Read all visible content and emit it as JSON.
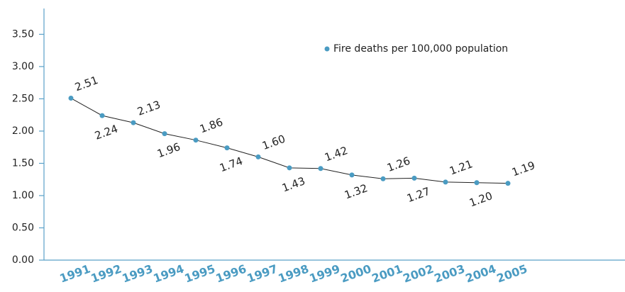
{
  "chart_data": {
    "type": "line",
    "categories": [
      "1991",
      "1992",
      "1993",
      "1994",
      "1995",
      "1996",
      "1997",
      "1998",
      "1999",
      "2000",
      "2001",
      "2002",
      "2003",
      "2004",
      "2005"
    ],
    "series": [
      {
        "name": "Fire deaths per 100,000 population",
        "color": "#4a9bc2",
        "values": [
          2.51,
          2.24,
          2.13,
          1.96,
          1.86,
          1.74,
          1.6,
          1.43,
          1.42,
          1.32,
          1.26,
          1.27,
          1.21,
          1.2,
          1.19
        ],
        "value_labels": [
          "2.51",
          "2.24",
          "2.13",
          "1.96",
          "1.86",
          "1.74",
          "1.60",
          "1.43",
          "1.42",
          "1.32",
          "1.26",
          "1.27",
          "1.21",
          "1.20",
          "1.19"
        ]
      }
    ],
    "ylim": [
      0,
      3.9
    ],
    "yticks": [
      {
        "value": 0,
        "label": "0.00"
      },
      {
        "value": 0.5,
        "label": "0.50"
      },
      {
        "value": 1,
        "label": "1.00"
      },
      {
        "value": 1.5,
        "label": "1.50"
      },
      {
        "value": 2,
        "label": "2.00"
      },
      {
        "value": 2.5,
        "label": "2.50"
      },
      {
        "value": 3,
        "label": "3.00"
      },
      {
        "value": 3.5,
        "label": "3.50"
      }
    ],
    "legend": "top-right"
  }
}
